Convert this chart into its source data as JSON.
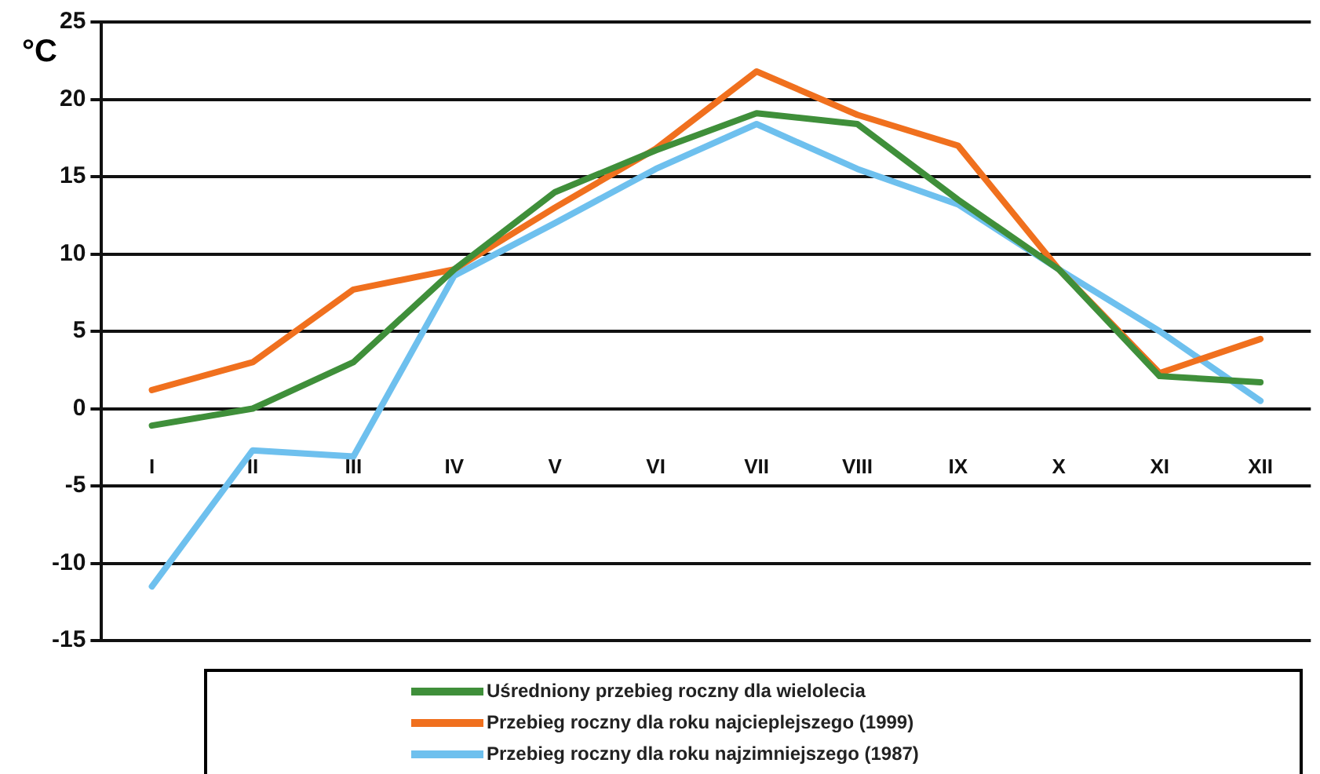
{
  "chart_data": {
    "type": "line",
    "ylabel": "°C",
    "categories": [
      "I",
      "II",
      "III",
      "IV",
      "V",
      "VI",
      "VII",
      "VIII",
      "IX",
      "X",
      "XI",
      "XII"
    ],
    "ylim": [
      -15,
      25
    ],
    "yticks": [
      -15,
      -10,
      -5,
      0,
      5,
      10,
      15,
      20,
      25
    ],
    "grid": "y",
    "legend": "bottom",
    "marker": "none",
    "line_style": "solid",
    "series": [
      {
        "name": "Uśredniony przebieg roczny dla wielolecia",
        "color": "#3f8f3a",
        "values": [
          -1.1,
          0,
          3,
          9,
          14,
          16.7,
          19.1,
          18.4,
          13.5,
          9,
          2.1,
          1.7
        ]
      },
      {
        "name": "Przebieg roczny dla roku najcieplejszego (1999)",
        "color": "#f0701e",
        "values": [
          1.2,
          3,
          7.7,
          9,
          13,
          16.8,
          21.8,
          19,
          17,
          9,
          2.3,
          4.5
        ]
      },
      {
        "name": "Przebieg roczny dla roku najzimniejszego (1987)",
        "color": "#6ec0ee",
        "values": [
          -11.5,
          -2.7,
          -3.1,
          8.6,
          12,
          15.5,
          18.4,
          15.5,
          13.2,
          9,
          5,
          0.5
        ]
      }
    ]
  }
}
